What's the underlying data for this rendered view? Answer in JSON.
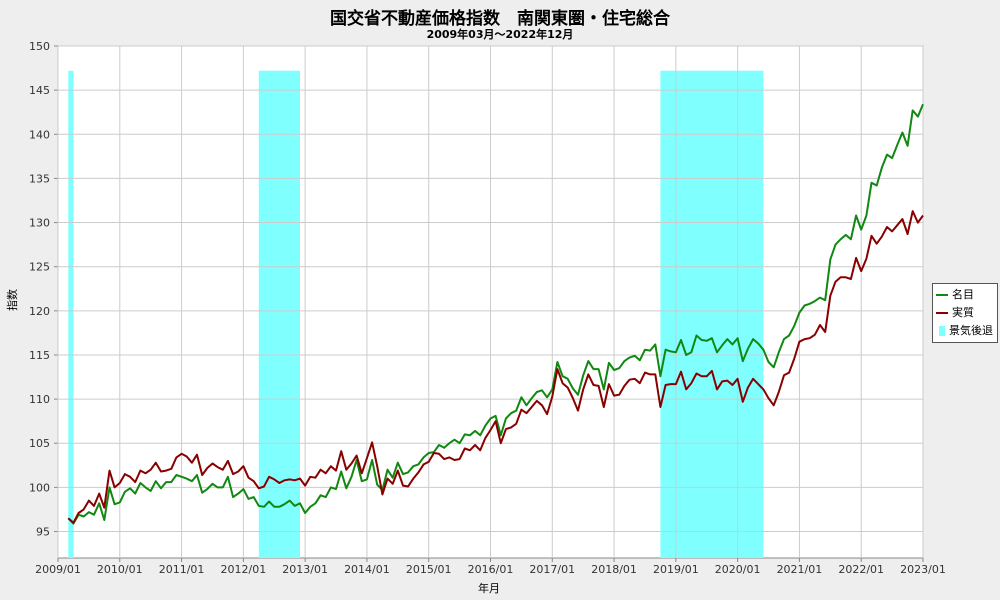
{
  "chart_data": {
    "type": "line",
    "title": "国交省不動産価格指数　南関東圏・住宅総合",
    "subtitle": "2009年03月～2022年12月",
    "xlabel": "年月",
    "ylabel": "指数",
    "x_ticks": [
      "2009/01",
      "2010/01",
      "2011/01",
      "2012/01",
      "2013/01",
      "2014/01",
      "2015/01",
      "2016/01",
      "2017/01",
      "2018/01",
      "2019/01",
      "2020/01",
      "2021/01",
      "2022/01",
      "2023/01"
    ],
    "y_ticks": [
      95,
      100,
      105,
      110,
      115,
      120,
      125,
      130,
      135,
      140,
      145,
      150
    ],
    "xlim": [
      "2009-01",
      "2023-01"
    ],
    "ylim": [
      92,
      150
    ],
    "grid": true,
    "legend_position": "right",
    "recession_periods": [
      [
        "2009-03",
        "2009-03"
      ],
      [
        "2012-04",
        "2012-11"
      ],
      [
        "2018-10",
        "2020-05"
      ]
    ],
    "recession_label": "景気後退",
    "series": [
      {
        "name": "名目",
        "color": "#118811",
        "start": "2009-03",
        "values": [
          96.5,
          95.9,
          96.9,
          96.7,
          97.2,
          96.9,
          98.2,
          96.3,
          100.0,
          98.1,
          98.3,
          99.5,
          99.9,
          99.3,
          100.5,
          100.0,
          99.6,
          100.7,
          99.9,
          100.6,
          100.6,
          101.4,
          101.2,
          101.0,
          100.7,
          101.4,
          99.4,
          99.8,
          100.4,
          100.0,
          100.0,
          101.2,
          98.9,
          99.3,
          99.8,
          98.7,
          98.9,
          97.9,
          97.8,
          98.4,
          97.8,
          97.8,
          98.1,
          98.5,
          97.9,
          98.2,
          97.1,
          97.8,
          98.2,
          99.1,
          98.9,
          100.0,
          99.8,
          101.8,
          99.9,
          101.2,
          103.1,
          100.7,
          100.9,
          103.1,
          100.3,
          99.7,
          102.0,
          101.1,
          102.8,
          101.5,
          101.7,
          102.4,
          102.6,
          103.4,
          103.9,
          104.0,
          104.8,
          104.5,
          105.0,
          105.4,
          105.0,
          106.0,
          105.9,
          106.4,
          105.9,
          107.0,
          107.8,
          108.1,
          105.9,
          107.8,
          108.4,
          108.7,
          110.2,
          109.3,
          110.1,
          110.8,
          111.0,
          110.2,
          111.1,
          114.2,
          112.6,
          112.3,
          111.2,
          110.5,
          112.7,
          114.3,
          113.4,
          113.4,
          111.1,
          114.1,
          113.3,
          113.5,
          114.3,
          114.7,
          114.9,
          114.4,
          115.6,
          115.5,
          116.2,
          112.6,
          115.6,
          115.4,
          115.3,
          116.7,
          115.0,
          115.3,
          117.2,
          116.7,
          116.6,
          116.9,
          115.3,
          116.1,
          116.8,
          116.2,
          116.9,
          114.3,
          115.7,
          116.8,
          116.3,
          115.6,
          114.2,
          113.6,
          115.3,
          116.8,
          117.2,
          118.3,
          119.8,
          120.6,
          120.8,
          121.1,
          121.5,
          121.2,
          125.8,
          127.5,
          128.1,
          128.6,
          128.1,
          130.8,
          129.2,
          130.8,
          134.5,
          134.2,
          136.2,
          137.7,
          137.3,
          138.8,
          140.2,
          138.7,
          142.7,
          142.0,
          143.4
        ]
      },
      {
        "name": "実質",
        "color": "#880000",
        "start": "2009-03",
        "values": [
          96.5,
          96.0,
          97.1,
          97.5,
          98.5,
          97.9,
          99.3,
          97.7,
          101.9,
          100.0,
          100.5,
          101.5,
          101.2,
          100.6,
          101.9,
          101.6,
          102.0,
          102.8,
          101.8,
          101.9,
          102.1,
          103.4,
          103.8,
          103.5,
          102.8,
          103.7,
          101.4,
          102.2,
          102.7,
          102.3,
          102.0,
          103.0,
          101.5,
          101.8,
          102.4,
          101.1,
          100.7,
          99.9,
          100.1,
          101.2,
          100.9,
          100.5,
          100.8,
          100.9,
          100.8,
          101.0,
          100.2,
          101.2,
          101.1,
          102.0,
          101.6,
          102.4,
          101.9,
          104.1,
          102.0,
          102.7,
          103.6,
          101.6,
          103.3,
          105.1,
          102.4,
          99.2,
          101.0,
          100.4,
          101.9,
          100.2,
          100.1,
          101.0,
          101.7,
          102.6,
          102.9,
          103.9,
          103.8,
          103.2,
          103.4,
          103.1,
          103.2,
          104.4,
          104.2,
          104.8,
          104.2,
          105.6,
          106.5,
          107.5,
          105.0,
          106.6,
          106.8,
          107.2,
          108.8,
          108.4,
          109.1,
          109.8,
          109.3,
          108.3,
          110.3,
          113.4,
          111.8,
          111.3,
          110.1,
          108.7,
          111.1,
          112.8,
          111.6,
          111.5,
          109.1,
          111.7,
          110.4,
          110.5,
          111.5,
          112.2,
          112.3,
          111.8,
          113.0,
          112.8,
          112.8,
          109.1,
          111.6,
          111.7,
          111.7,
          113.1,
          111.1,
          111.8,
          112.9,
          112.6,
          112.6,
          113.2,
          111.1,
          112.0,
          112.1,
          111.6,
          112.3,
          109.7,
          111.3,
          112.3,
          111.7,
          111.1,
          110.1,
          109.3,
          110.8,
          112.7,
          113.0,
          114.6,
          116.5,
          116.8,
          116.9,
          117.3,
          118.4,
          117.6,
          121.7,
          123.3,
          123.8,
          123.8,
          123.6,
          126.0,
          124.5,
          125.9,
          128.5,
          127.6,
          128.4,
          129.5,
          129.0,
          129.7,
          130.4,
          128.7,
          131.3,
          130.0,
          130.8
        ]
      }
    ]
  },
  "legend": {
    "items": [
      "名目",
      "実質",
      "景気後退"
    ],
    "colors": [
      "#118811",
      "#880000",
      "#80ffff"
    ]
  }
}
